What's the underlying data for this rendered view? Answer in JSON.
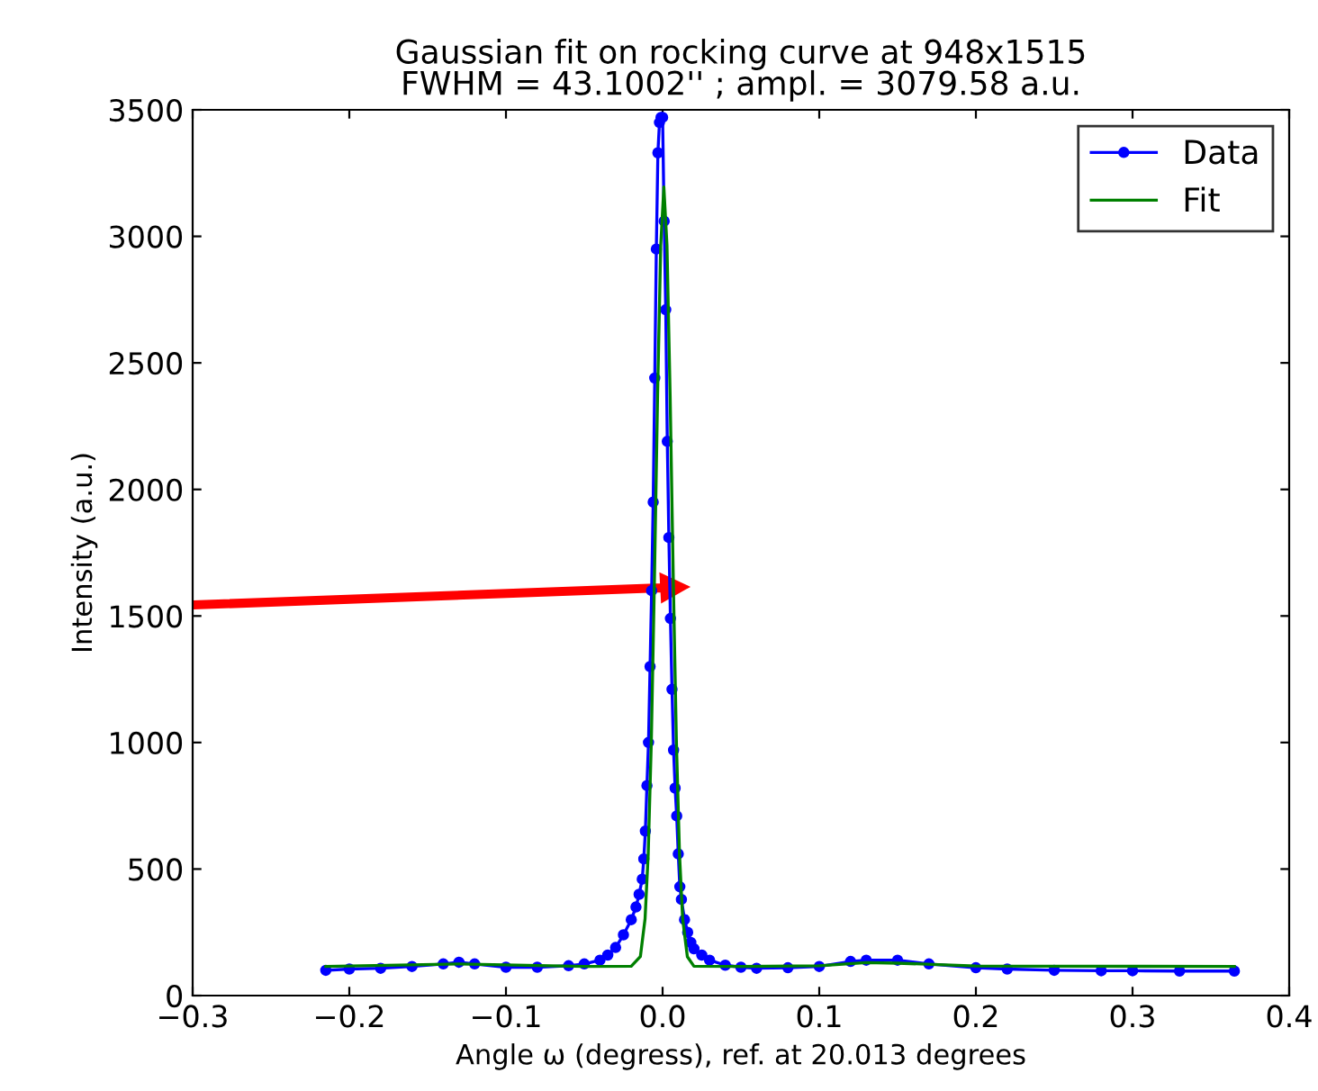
{
  "chart_data": {
    "type": "line",
    "title": "Gaussian fit on rocking curve at 948x1515\nFWHM = 43.1002'' ; ampl. = 3079.58 a.u.",
    "xlabel": "Angle ω (degress), ref. at 20.013 degrees",
    "ylabel": "Intensity (a.u.)",
    "xlim": [
      -0.3,
      0.4
    ],
    "xticks": [
      {
        "value": -0.3,
        "label": "−0.3"
      },
      {
        "value": -0.2,
        "label": "−0.2"
      },
      {
        "value": -0.1,
        "label": "−0.1"
      },
      {
        "value": 0.0,
        "label": "0.0"
      },
      0.1,
      0.2,
      0.3,
      0.4
    ],
    "ylim": [
      0,
      3500
    ],
    "yticks": [
      0,
      500,
      1000,
      1500,
      2000,
      2500,
      3000,
      3500
    ],
    "grid": false,
    "legend": "top right",
    "series": [
      {
        "name": "Data",
        "color": "#0000ff",
        "marker": "circle",
        "x": [
          -0.215,
          -0.2,
          -0.18,
          -0.16,
          -0.14,
          -0.13,
          -0.12,
          -0.1,
          -0.08,
          -0.06,
          -0.05,
          -0.04,
          -0.035,
          -0.03,
          -0.025,
          -0.02,
          -0.017,
          -0.015,
          -0.013,
          -0.012,
          -0.011,
          -0.01,
          -0.009,
          -0.008,
          -0.007,
          -0.006,
          -0.005,
          -0.004,
          -0.003,
          -0.002,
          -0.001,
          0.0,
          0.001,
          0.002,
          0.003,
          0.004,
          0.005,
          0.006,
          0.007,
          0.008,
          0.009,
          0.01,
          0.011,
          0.012,
          0.014,
          0.016,
          0.018,
          0.02,
          0.025,
          0.03,
          0.04,
          0.05,
          0.06,
          0.08,
          0.1,
          0.12,
          0.13,
          0.15,
          0.17,
          0.2,
          0.22,
          0.25,
          0.28,
          0.3,
          0.33,
          0.365
        ],
        "values": [
          100,
          105,
          108,
          115,
          125,
          132,
          125,
          112,
          112,
          118,
          125,
          140,
          160,
          190,
          240,
          300,
          350,
          400,
          460,
          540,
          650,
          830,
          1000,
          1300,
          1600,
          1950,
          2440,
          2950,
          3330,
          3450,
          3470,
          3470,
          3060,
          2710,
          2190,
          1810,
          1490,
          1210,
          970,
          820,
          710,
          560,
          430,
          380,
          300,
          250,
          210,
          185,
          160,
          140,
          120,
          112,
          108,
          110,
          115,
          135,
          140,
          140,
          125,
          110,
          105,
          100,
          98,
          98,
          97,
          97
        ]
      },
      {
        "name": "Fit",
        "color": "#008000",
        "marker": "none",
        "x": [
          -0.215,
          -0.13,
          -0.05,
          -0.02,
          -0.0142,
          -0.0112,
          -0.0092,
          -0.0072,
          -0.0052,
          -0.0032,
          -0.0012,
          0.0008,
          0.0028,
          0.0048,
          0.0068,
          0.0088,
          0.0108,
          0.0128,
          0.0158,
          0.02,
          0.05,
          0.1,
          0.13,
          0.15,
          0.2,
          0.365
        ],
        "values": [
          115,
          125,
          115,
          116,
          154,
          303,
          558,
          1005,
          1649,
          2373,
          2964,
          3195,
          2964,
          2373,
          1649,
          1005,
          558,
          303,
          154,
          116,
          115,
          118,
          130,
          128,
          117,
          115
        ]
      }
    ]
  }
}
